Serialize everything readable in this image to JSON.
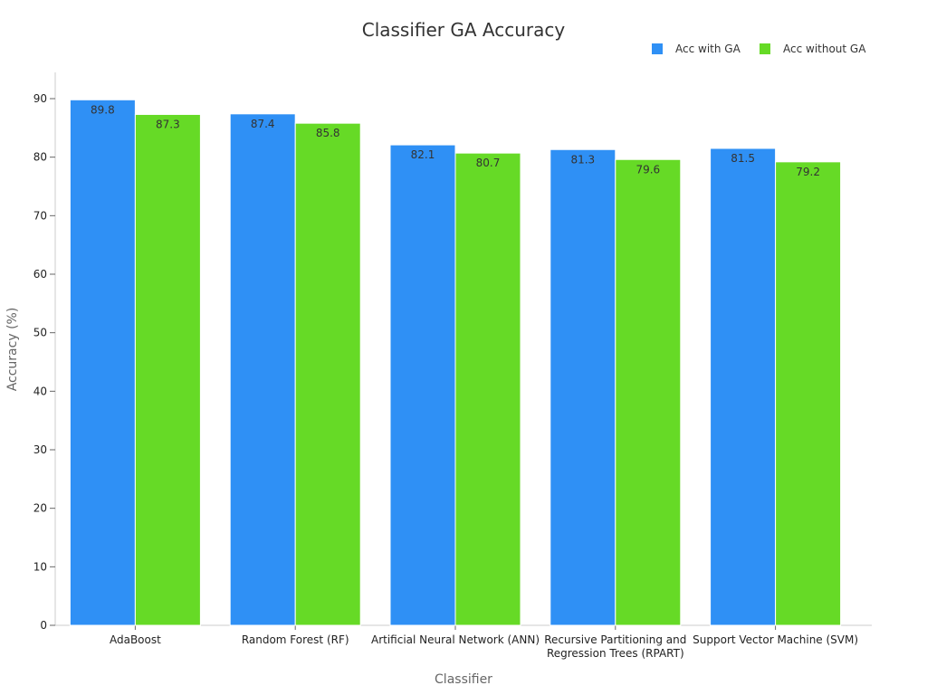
{
  "chart_data": {
    "type": "bar",
    "title": "Classifier GA Accuracy",
    "xlabel": "Classifier",
    "ylabel": "Accuracy (%)",
    "ylim": [
      0,
      90
    ],
    "yticks": [
      0,
      10,
      20,
      30,
      40,
      50,
      60,
      70,
      80,
      90
    ],
    "grid": false,
    "legend_position": "top-right",
    "categories": [
      [
        "AdaBoost"
      ],
      [
        "Random Forest (RF)"
      ],
      [
        "Artificial Neural Network (ANN)"
      ],
      [
        "Recursive Partitioning and",
        "Regression Trees (RPART)"
      ],
      [
        "Support Vector Machine (SVM)"
      ]
    ],
    "series": [
      {
        "name": "Acc with GA",
        "color": "#2f90f5",
        "values": [
          89.8,
          87.4,
          82.1,
          81.3,
          81.5
        ]
      },
      {
        "name": "Acc without GA",
        "color": "#66da26",
        "values": [
          87.3,
          85.8,
          80.7,
          79.6,
          79.2
        ]
      }
    ]
  }
}
